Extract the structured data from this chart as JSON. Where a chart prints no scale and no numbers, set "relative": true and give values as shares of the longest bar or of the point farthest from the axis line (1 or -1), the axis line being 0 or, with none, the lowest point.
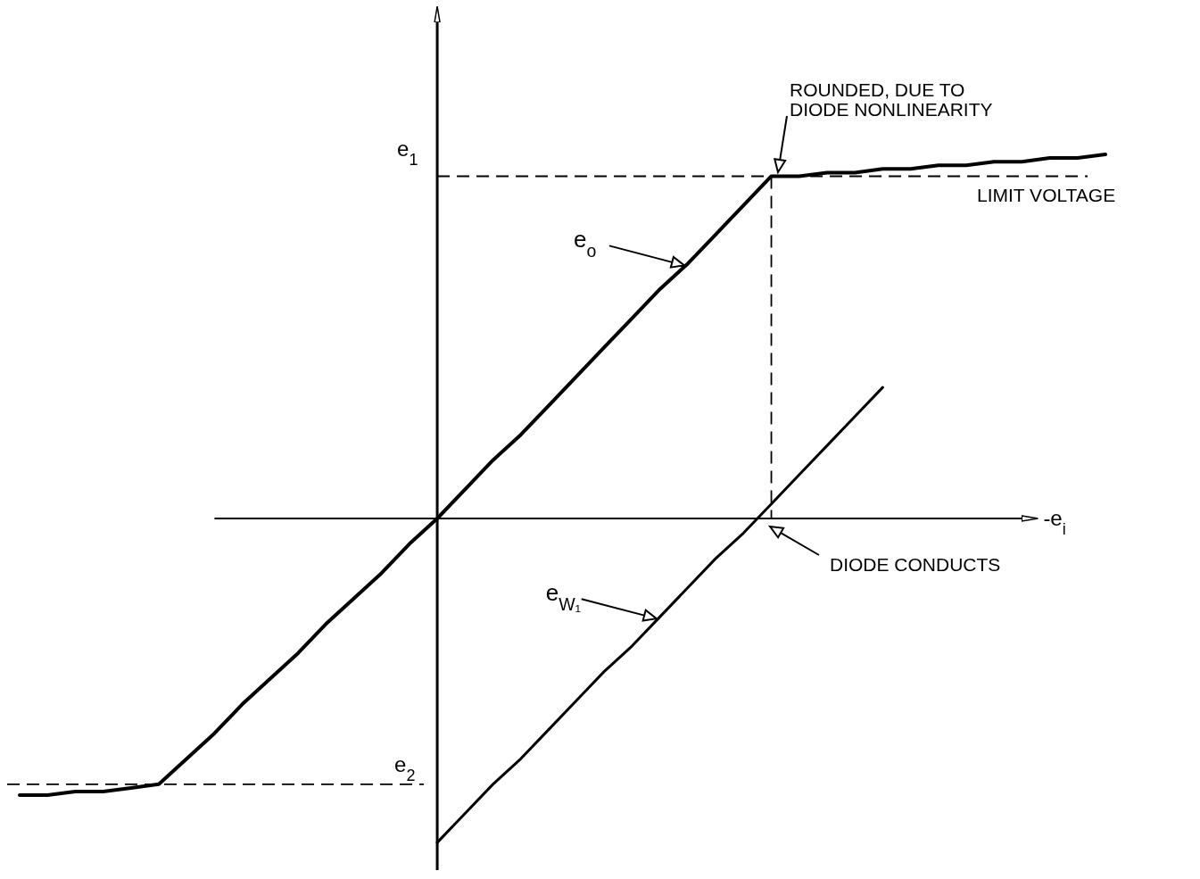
{
  "chart_data": {
    "type": "line",
    "relative": true,
    "xlabel": "-e$_{i}$",
    "legend": "center",
    "line_style": "solid",
    "marker": "none",
    "categories": [
      null,
      null,
      null,
      null,
      null,
      null,
      null,
      null,
      null,
      null,
      null,
      null,
      null,
      null,
      null,
      null,
      null,
      null,
      null,
      null,
      null,
      null,
      null,
      null,
      null,
      null,
      null,
      null,
      null,
      null,
      null,
      null,
      null,
      null,
      null,
      null,
      null,
      null,
      null,
      null
    ],
    "series": [
      {
        "name": "e$_{o}$",
        "color": "#000000",
        "values": [
          -0.76,
          -0.76,
          -0.75,
          -0.75,
          -0.74,
          -0.73,
          -0.66,
          -0.59,
          -0.51,
          -0.44,
          -0.37,
          -0.29,
          -0.22,
          -0.15,
          -0.07,
          0,
          0.08,
          0.16,
          0.23,
          0.31,
          0.39,
          0.47,
          0.55,
          0.63,
          0.7,
          0.78,
          0.86,
          0.94,
          0.94,
          0.95,
          0.95,
          0.96,
          0.96,
          0.97,
          0.97,
          0.98,
          0.98,
          0.99,
          0.99,
          1
        ]
      },
      {
        "name": "e$_{W₁}$",
        "color": "#000000",
        "values": [
          null,
          null,
          null,
          null,
          null,
          null,
          null,
          null,
          null,
          null,
          null,
          null,
          null,
          null,
          null,
          -0.89,
          -0.81,
          -0.73,
          -0.66,
          -0.58,
          -0.5,
          -0.42,
          -0.35,
          -0.27,
          -0.19,
          -0.11,
          -0.04,
          0.04,
          0.12,
          0.2,
          0.28,
          0.36,
          null,
          null,
          null,
          null,
          null,
          null,
          null,
          null
        ]
      }
    ],
    "ref_lines": [
      {
        "axis": "y",
        "value": 0.94,
        "label": "e$_{1}$",
        "line_style": "dashed",
        "color": "#000000"
      },
      {
        "axis": "y",
        "value": -0.73,
        "label": "e$_{2}$",
        "line_style": "dashed",
        "color": "#000000"
      }
    ],
    "annotations": [
      "ROUNDED, DUE TO DIODE NONLINEARITY",
      "LIMIT VOLTAGE",
      "DIODE CONDUCTS"
    ]
  }
}
